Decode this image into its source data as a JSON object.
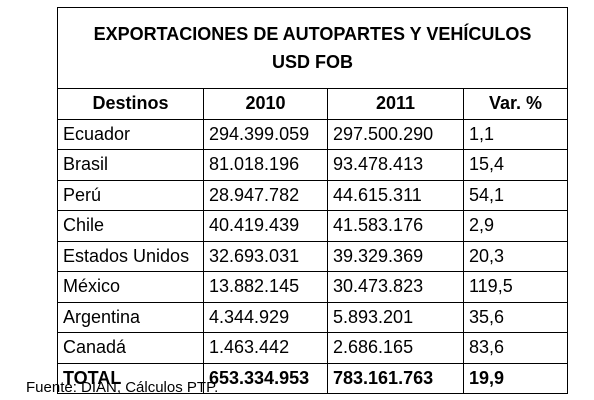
{
  "title_line1": "EXPORTACIONES DE AUTOPARTES Y VEHÍCULOS",
  "title_line2": "USD FOB",
  "headers": [
    "Destinos",
    "2010",
    "2011",
    "Var. %"
  ],
  "rows": [
    [
      "Ecuador",
      "294.399.059",
      "297.500.290",
      "1,1"
    ],
    [
      "Brasil",
      "81.018.196",
      "93.478.413",
      "15,4"
    ],
    [
      "Perú",
      "28.947.782",
      "44.615.311",
      "54,1"
    ],
    [
      "Chile",
      "40.419.439",
      "41.583.176",
      "2,9"
    ],
    [
      "Estados Unidos",
      "32.693.031",
      "39.329.369",
      "20,3"
    ],
    [
      "México",
      "13.882.145",
      "30.473.823",
      "119,5"
    ],
    [
      "Argentina",
      "4.344.929",
      "5.893.201",
      "35,6"
    ],
    [
      "Canadá",
      "1.463.442",
      "2.686.165",
      "83,6"
    ]
  ],
  "total": [
    "TOTAL",
    "653.334.953",
    "783.161.763",
    "19,9"
  ],
  "source": "Fuente: DIAN, Cálculos PTP."
}
